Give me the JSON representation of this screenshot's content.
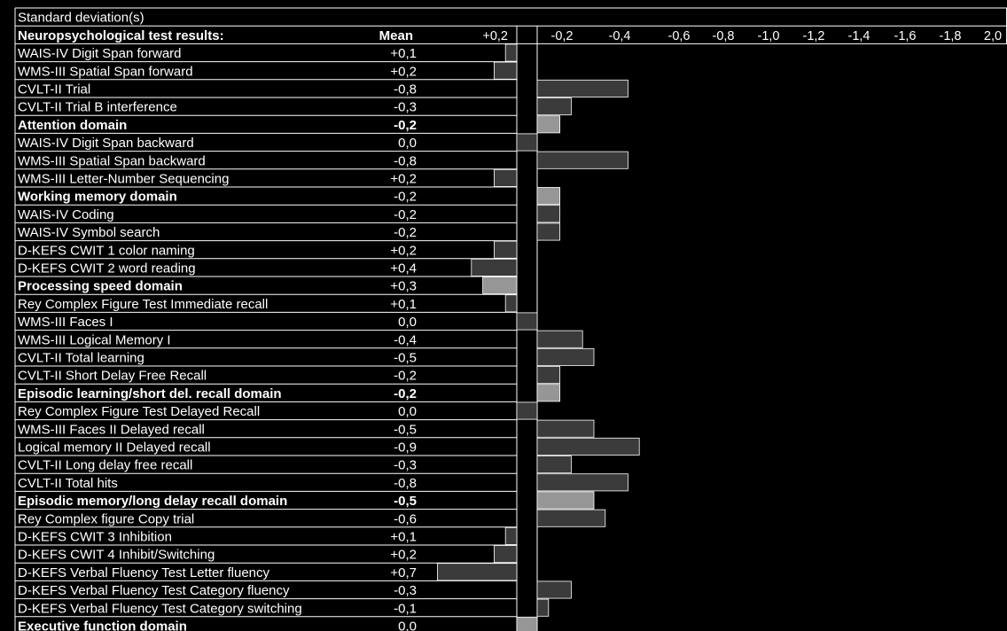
{
  "chart_data": {
    "type": "bar",
    "orientation": "horizontal",
    "title": "Standard deviation(s)",
    "header": {
      "label": "Neuropsychological test results:",
      "mean": "Mean"
    },
    "ticks_left": [
      "+0,2"
    ],
    "ticks_right": [
      "-0,2",
      "-0,4",
      "-0,6",
      "-0,8",
      "-1,0",
      "-1,2",
      "-1,4",
      "-1,6",
      "-1,8",
      "2,0"
    ],
    "rows": [
      {
        "label": "WAIS-IV Digit Span forward",
        "mean": "+0,1",
        "value": 0.1,
        "domain": false
      },
      {
        "label": "WMS-III Spatial Span forward",
        "mean": "+0,2",
        "value": 0.2,
        "domain": false
      },
      {
        "label": "CVLT-II Trial",
        "mean": "-0,8",
        "value": -0.8,
        "domain": false
      },
      {
        "label": "CVLT-II Trial B interference",
        "mean": "-0,3",
        "value": -0.3,
        "domain": false
      },
      {
        "label": "Attention domain",
        "mean": "-0,2",
        "value": -0.2,
        "domain": true,
        "bold_mean": true
      },
      {
        "label": "WAIS-IV Digit Span backward",
        "mean": "0,0",
        "value": 0.0,
        "domain": false
      },
      {
        "label": "WMS-III Spatial Span backward",
        "mean": "-0,8",
        "value": -0.8,
        "domain": false
      },
      {
        "label": "WMS-III Letter-Number Sequencing",
        "mean": "+0,2",
        "value": 0.2,
        "domain": false
      },
      {
        "label": "Working memory domain",
        "mean": "-0,2",
        "value": -0.2,
        "domain": true,
        "bold_mean": false
      },
      {
        "label": "WAIS-IV Coding",
        "mean": "-0,2",
        "value": -0.2,
        "domain": false
      },
      {
        "label": "WAIS-IV Symbol search",
        "mean": "-0,2",
        "value": -0.2,
        "domain": false
      },
      {
        "label": "D-KEFS CWIT 1 color naming",
        "mean": "+0,2",
        "value": 0.2,
        "domain": false
      },
      {
        "label": "D-KEFS CWIT 2 word reading",
        "mean": "+0,4",
        "value": 0.4,
        "domain": false
      },
      {
        "label": "Processing speed domain",
        "mean": "+0,3",
        "value": 0.3,
        "domain": true,
        "bold_mean": false
      },
      {
        "label": "Rey Complex Figure Test  Immediate recall",
        "mean": "+0,1",
        "value": 0.1,
        "domain": false
      },
      {
        "label": "WMS-III Faces I",
        "mean": "0,0",
        "value": 0.0,
        "domain": false
      },
      {
        "label": "WMS-III Logical Memory I",
        "mean": "-0,4",
        "value": -0.4,
        "domain": false
      },
      {
        "label": "CVLT-II Total learning",
        "mean": "-0,5",
        "value": -0.5,
        "domain": false
      },
      {
        "label": "CVLT-II Short Delay Free Recall",
        "mean": "-0,2",
        "value": -0.2,
        "domain": false
      },
      {
        "label": "Episodic learning/short del. recall domain",
        "mean": "-0,2",
        "value": -0.2,
        "domain": true,
        "bold_mean": true
      },
      {
        "label": "Rey Complex Figure Test Delayed Recall",
        "mean": "0,0",
        "value": 0.0,
        "domain": false
      },
      {
        "label": "WMS-III Faces II Delayed recall",
        "mean": "-0,5",
        "value": -0.5,
        "domain": false
      },
      {
        "label": "Logical memory II Delayed recall",
        "mean": "-0,9",
        "value": -0.9,
        "domain": false
      },
      {
        "label": "CVLT-II Long delay free recall",
        "mean": "-0,3",
        "value": -0.3,
        "domain": false
      },
      {
        "label": "CVLT-II Total hits",
        "mean": "-0,8",
        "value": -0.8,
        "domain": false
      },
      {
        "label": "Episodic memory/long delay recall domain",
        "mean": "-0,5",
        "value": -0.5,
        "domain": true,
        "bold_mean": true
      },
      {
        "label": "Rey Complex figure Copy trial",
        "mean": "-0,6",
        "value": -0.6,
        "domain": false
      },
      {
        "label": "D-KEFS CWIT 3 Inhibition",
        "mean": "+0,1",
        "value": 0.1,
        "domain": false
      },
      {
        "label": "D-KEFS CWIT 4 Inhibit/Switching",
        "mean": "+0,2",
        "value": 0.2,
        "domain": false
      },
      {
        "label": "D-KEFS Verbal Fluency Test Letter fluency",
        "mean": "+0,7",
        "value": 0.7,
        "domain": false
      },
      {
        "label": "D-KEFS Verbal Fluency Test Category fluency",
        "mean": "-0,3",
        "value": -0.3,
        "domain": false
      },
      {
        "label": "D-KEFS Verbal Fluency Test Category switching",
        "mean": "-0,1",
        "value": -0.1,
        "domain": false
      },
      {
        "label": "Executive function domain",
        "mean": "0,0",
        "value": 0.0,
        "domain": true,
        "bold_mean": false
      }
    ],
    "colors": {
      "background": "#000000",
      "test_bar": "#3b3b3b",
      "domain_bar": "#969696",
      "grid": "#ffffff"
    }
  }
}
